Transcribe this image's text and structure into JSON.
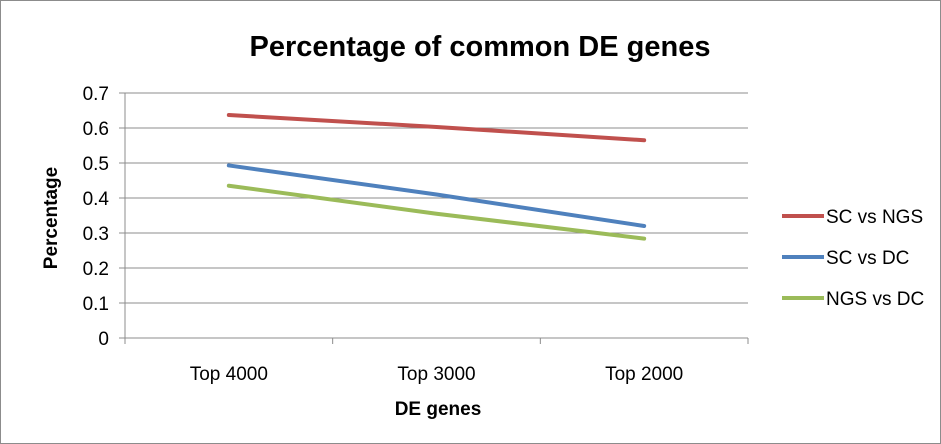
{
  "chart_data": {
    "type": "line",
    "title": "Percentage of common DE genes",
    "xlabel": "DE genes",
    "ylabel": "Percentage",
    "categories": [
      "Top 4000",
      "Top 3000",
      "Top 2000"
    ],
    "ylim": [
      0,
      0.7
    ],
    "yticks": [
      "0",
      "0.1",
      "0.2",
      "0.3",
      "0.4",
      "0.5",
      "0.6",
      "0.7"
    ],
    "grid": true,
    "legend_position": "right",
    "series": [
      {
        "name": "SC vs NGS",
        "color": "#c0504d",
        "values": [
          0.637,
          0.603,
          0.565
        ]
      },
      {
        "name": "SC vs DC",
        "color": "#4f81bd",
        "values": [
          0.493,
          0.41,
          0.32
        ]
      },
      {
        "name": "NGS vs DC",
        "color": "#9bbb59",
        "values": [
          0.435,
          0.355,
          0.284
        ]
      }
    ]
  }
}
